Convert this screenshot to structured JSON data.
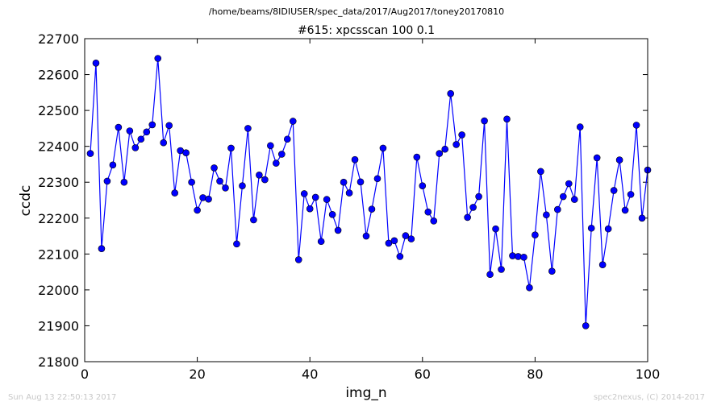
{
  "suptitle": "/home/beams/8IDIUSER/spec_data/2017/Aug2017/toney20170810",
  "footer": {
    "timestamp": "Sun Aug 13 22:50:13 2017",
    "credit": "spec2nexus, (C) 2014-2017"
  },
  "chart_data": {
    "type": "line",
    "title": "#615: xpcsscan 100 0.1",
    "xlabel": "img_n",
    "ylabel": "ccdc",
    "xlim": [
      0,
      100
    ],
    "ylim": [
      21800,
      22700
    ],
    "xticks": [
      0,
      20,
      40,
      60,
      80,
      100
    ],
    "yticks": [
      21800,
      21900,
      22000,
      22100,
      22200,
      22300,
      22400,
      22500,
      22600,
      22700
    ],
    "grid": false,
    "line_color": "#0000ff",
    "marker": "circle",
    "marker_color": "#0000ff",
    "series": [
      {
        "x": [
          1,
          2,
          3,
          4,
          5,
          6,
          7,
          8,
          9,
          10,
          11,
          12,
          13,
          14,
          15,
          16,
          17,
          18,
          19,
          20,
          21,
          22,
          23,
          24,
          25,
          26,
          27,
          28,
          29,
          30,
          31,
          32,
          33,
          34,
          35,
          36,
          37,
          38,
          39,
          40,
          41,
          42,
          43,
          44,
          45,
          46,
          47,
          48,
          49,
          50,
          51,
          52,
          53,
          54,
          55,
          56,
          57,
          58,
          59,
          60,
          61,
          62,
          63,
          64,
          65,
          66,
          67,
          68,
          69,
          70,
          71,
          72,
          73,
          74,
          75,
          76,
          77,
          78,
          79,
          80,
          81,
          82,
          83,
          84,
          85,
          86,
          87,
          88,
          89,
          90,
          91,
          92,
          93,
          94,
          95,
          96,
          97,
          98,
          99,
          100
        ],
        "y": [
          22380,
          22632,
          22115,
          22303,
          22348,
          22453,
          22300,
          22443,
          22396,
          22420,
          22440,
          22460,
          22645,
          22410,
          22458,
          22270,
          22388,
          22382,
          22300,
          22222,
          22257,
          22253,
          22340,
          22303,
          22284,
          22395,
          22128,
          22290,
          22450,
          22195,
          22320,
          22307,
          22402,
          22353,
          22378,
          22420,
          22470,
          22084,
          22268,
          22226,
          22258,
          22135,
          22252,
          22210,
          22166,
          22300,
          22270,
          22363,
          22301,
          22150,
          22225,
          22310,
          22395,
          22130,
          22137,
          22093,
          22151,
          22142,
          22370,
          22290,
          22217,
          22192,
          22380,
          22392,
          22547,
          22405,
          22432,
          22202,
          22230,
          22260,
          22471,
          22043,
          22170,
          22057,
          22476,
          22095,
          22093,
          22091,
          22006,
          22153,
          22330,
          22209,
          22052,
          22224,
          22260,
          22296,
          22252,
          22454,
          21900,
          22172,
          22368,
          22070,
          22170,
          22277,
          22362,
          22222,
          22266,
          22459,
          22200,
          22334
        ]
      }
    ]
  }
}
